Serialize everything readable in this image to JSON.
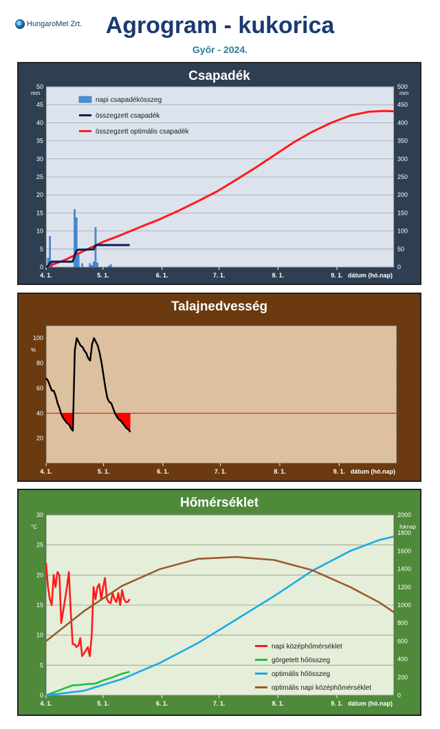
{
  "header": {
    "logo_text": "HungaroMet Zrt.",
    "title": "Agrogram - kukorica",
    "subtitle": "Győr - 2024."
  },
  "colors": {
    "panel1_bg": "#2f3f52",
    "panel1_plot": "#dde3ec",
    "panel2_bg": "#6b3a10",
    "panel2_plot": "#dcc0a0",
    "panel3_bg": "#4f8a3a",
    "panel3_plot": "#e4eed9"
  },
  "chart_data": [
    {
      "type": "bar",
      "title": "Csapadék",
      "ylabel": "mm",
      "ylabel_right": "mm",
      "xlabel": "dátum (hó.nap)",
      "xlim": [
        0,
        183
      ],
      "ylim": [
        0,
        50
      ],
      "ylim_right": [
        0,
        500
      ],
      "x_ticks": [
        0,
        30,
        61,
        91,
        122,
        153
      ],
      "x_tick_labels": [
        "4. 1.",
        "5. 1.",
        "6. 1.",
        "7. 1.",
        "8. 1.",
        "9. 1."
      ],
      "y_ticks": [
        0,
        5,
        10,
        15,
        20,
        25,
        30,
        35,
        40,
        45,
        50
      ],
      "y_ticks_right": [
        0,
        50,
        100,
        150,
        200,
        250,
        300,
        350,
        400,
        450,
        500
      ],
      "legend_position": "top-left",
      "series": [
        {
          "name": "napi csapadékösszeg",
          "kind": "bar",
          "axis": "left",
          "color": "#4a8fd6",
          "points": [
            [
              1,
              2.5
            ],
            [
              2,
              8.5
            ],
            [
              3,
              1.2
            ],
            [
              15,
              16
            ],
            [
              16,
              13.7
            ],
            [
              17,
              3.5
            ],
            [
              19,
              1
            ],
            [
              23,
              1
            ],
            [
              24,
              0.5
            ],
            [
              25,
              1.5
            ],
            [
              26,
              11
            ],
            [
              27,
              1.2
            ],
            [
              33,
              0.3
            ],
            [
              34,
              0.7
            ]
          ]
        },
        {
          "name": "összegzett csapadék",
          "kind": "line",
          "axis": "right",
          "color": "#0b1f4f",
          "points": [
            [
              0,
              0
            ],
            [
              1,
              3
            ],
            [
              2,
              12
            ],
            [
              3,
              15
            ],
            [
              14,
              15
            ],
            [
              15,
              31
            ],
            [
              16,
              45
            ],
            [
              17,
              48
            ],
            [
              25,
              49
            ],
            [
              26,
              60
            ],
            [
              27,
              61
            ],
            [
              44,
              61
            ]
          ]
        },
        {
          "name": "összegzett optimális csapadék",
          "kind": "line",
          "axis": "right",
          "color": "#ff1a1a",
          "points": [
            [
              0,
              0
            ],
            [
              10,
              20
            ],
            [
              20,
              45
            ],
            [
              30,
              70
            ],
            [
              40,
              90
            ],
            [
              50,
              112
            ],
            [
              60,
              133
            ],
            [
              70,
              157
            ],
            [
              80,
              183
            ],
            [
              90,
              210
            ],
            [
              100,
              242
            ],
            [
              110,
              275
            ],
            [
              120,
              310
            ],
            [
              130,
              345
            ],
            [
              140,
              375
            ],
            [
              150,
              400
            ],
            [
              160,
              420
            ],
            [
              170,
              431
            ],
            [
              178,
              433
            ],
            [
              183,
              432
            ]
          ]
        }
      ]
    },
    {
      "type": "line",
      "title": "Talajnedvesség",
      "ylabel": "%",
      "xlabel": "dátum (hó.nap)",
      "xlim": [
        0,
        183
      ],
      "ylim": [
        0,
        110
      ],
      "x_ticks": [
        0,
        30,
        61,
        91,
        122,
        153
      ],
      "x_tick_labels": [
        "4. 1.",
        "5. 1.",
        "6. 1.",
        "7. 1.",
        "8. 1.",
        "9. 1."
      ],
      "y_ticks": [
        20,
        40,
        60,
        80,
        100
      ],
      "threshold": 40,
      "threshold_color": "#e00000",
      "series": [
        {
          "name": "",
          "color": "#000000",
          "points": [
            [
              0,
              68
            ],
            [
              1,
              66
            ],
            [
              2,
              62
            ],
            [
              3,
              58
            ],
            [
              4,
              58
            ],
            [
              5,
              54
            ],
            [
              6,
              48
            ],
            [
              7,
              44
            ],
            [
              8,
              39
            ],
            [
              9,
              36
            ],
            [
              10,
              34
            ],
            [
              11,
              32
            ],
            [
              12,
              31
            ],
            [
              13,
              28
            ],
            [
              14,
              26
            ],
            [
              15,
              90
            ],
            [
              16,
              100
            ],
            [
              17,
              97
            ],
            [
              18,
              94
            ],
            [
              19,
              93
            ],
            [
              20,
              90
            ],
            [
              21,
              88
            ],
            [
              22,
              84
            ],
            [
              23,
              82
            ],
            [
              24,
              95
            ],
            [
              25,
              100
            ],
            [
              26,
              97
            ],
            [
              27,
              94
            ],
            [
              28,
              88
            ],
            [
              29,
              80
            ],
            [
              30,
              70
            ],
            [
              31,
              60
            ],
            [
              32,
              52
            ],
            [
              33,
              49
            ],
            [
              34,
              48
            ],
            [
              35,
              44
            ],
            [
              36,
              40
            ],
            [
              37,
              37
            ],
            [
              38,
              35
            ],
            [
              39,
              34
            ],
            [
              40,
              32
            ],
            [
              41,
              30
            ],
            [
              42,
              28
            ],
            [
              43,
              27
            ],
            [
              44,
              25
            ]
          ]
        }
      ]
    },
    {
      "type": "line",
      "title": "Hőmérséklet",
      "ylabel": "°C",
      "ylabel_right": "foknap",
      "xlabel": "dátum (hó.nap)",
      "xlim": [
        0,
        183
      ],
      "ylim": [
        0,
        30
      ],
      "ylim_right": [
        0,
        2000
      ],
      "x_ticks": [
        0,
        30,
        61,
        91,
        122,
        153
      ],
      "x_tick_labels": [
        "4. 1.",
        "5. 1.",
        "6. 1.",
        "7. 1.",
        "8. 1.",
        "9. 1."
      ],
      "y_ticks": [
        0,
        5,
        10,
        15,
        20,
        25,
        30
      ],
      "y_ticks_right": [
        0,
        200,
        400,
        600,
        800,
        1000,
        1200,
        1400,
        1600,
        1800,
        2000
      ],
      "legend_position": "bottom-right",
      "series": [
        {
          "name": "napi középhőmérséklet",
          "axis": "left",
          "color": "#ff1a1a",
          "points": [
            [
              0,
              22
            ],
            [
              1,
              18
            ],
            [
              2,
              16
            ],
            [
              3,
              15
            ],
            [
              4,
              20
            ],
            [
              5,
              18
            ],
            [
              6,
              20.5
            ],
            [
              7,
              20
            ],
            [
              8,
              12
            ],
            [
              9,
              14
            ],
            [
              10,
              16
            ],
            [
              11,
              18
            ],
            [
              12,
              20.5
            ],
            [
              13,
              14
            ],
            [
              14,
              8.5
            ],
            [
              15,
              8.5
            ],
            [
              16,
              8
            ],
            [
              17,
              8.3
            ],
            [
              18,
              9.5
            ],
            [
              19,
              6.5
            ],
            [
              20,
              7
            ],
            [
              21,
              7.5
            ],
            [
              22,
              8
            ],
            [
              23,
              6.5
            ],
            [
              24,
              10
            ],
            [
              25,
              18
            ],
            [
              26,
              16
            ],
            [
              27,
              18
            ],
            [
              28,
              18.5
            ],
            [
              29,
              16
            ],
            [
              30,
              18
            ],
            [
              31,
              19.5
            ],
            [
              32,
              16
            ],
            [
              33,
              15.5
            ],
            [
              34,
              15.3
            ],
            [
              35,
              17
            ],
            [
              36,
              16
            ],
            [
              37,
              15.5
            ],
            [
              38,
              17
            ],
            [
              39,
              15
            ],
            [
              40,
              17.5
            ],
            [
              41,
              16
            ],
            [
              42,
              15.5
            ],
            [
              43,
              15.5
            ],
            [
              44,
              16
            ]
          ]
        },
        {
          "name": "görgetett hőösszeg",
          "axis": "right",
          "color": "#1fbf3f",
          "points": [
            [
              0,
              0
            ],
            [
              5,
              40
            ],
            [
              10,
              80
            ],
            [
              14,
              110
            ],
            [
              18,
              115
            ],
            [
              22,
              125
            ],
            [
              26,
              130
            ],
            [
              30,
              165
            ],
            [
              35,
              200
            ],
            [
              40,
              240
            ],
            [
              44,
              260
            ]
          ]
        },
        {
          "name": "optimális hőösszeg",
          "axis": "right",
          "color": "#1aa9e6",
          "points": [
            [
              0,
              0
            ],
            [
              20,
              50
            ],
            [
              40,
              180
            ],
            [
              60,
              360
            ],
            [
              80,
              580
            ],
            [
              100,
              840
            ],
            [
              120,
              1100
            ],
            [
              140,
              1380
            ],
            [
              160,
              1600
            ],
            [
              175,
              1720
            ],
            [
              183,
              1760
            ]
          ]
        },
        {
          "name": "optimális napi középhőmérséklet",
          "axis": "left",
          "color": "#9b5a2a",
          "points": [
            [
              0,
              9
            ],
            [
              20,
              14
            ],
            [
              40,
              18.2
            ],
            [
              60,
              21
            ],
            [
              80,
              22.7
            ],
            [
              100,
              23
            ],
            [
              120,
              22.5
            ],
            [
              140,
              20.8
            ],
            [
              160,
              18
            ],
            [
              175,
              15.5
            ],
            [
              183,
              13.8
            ]
          ]
        }
      ]
    }
  ]
}
